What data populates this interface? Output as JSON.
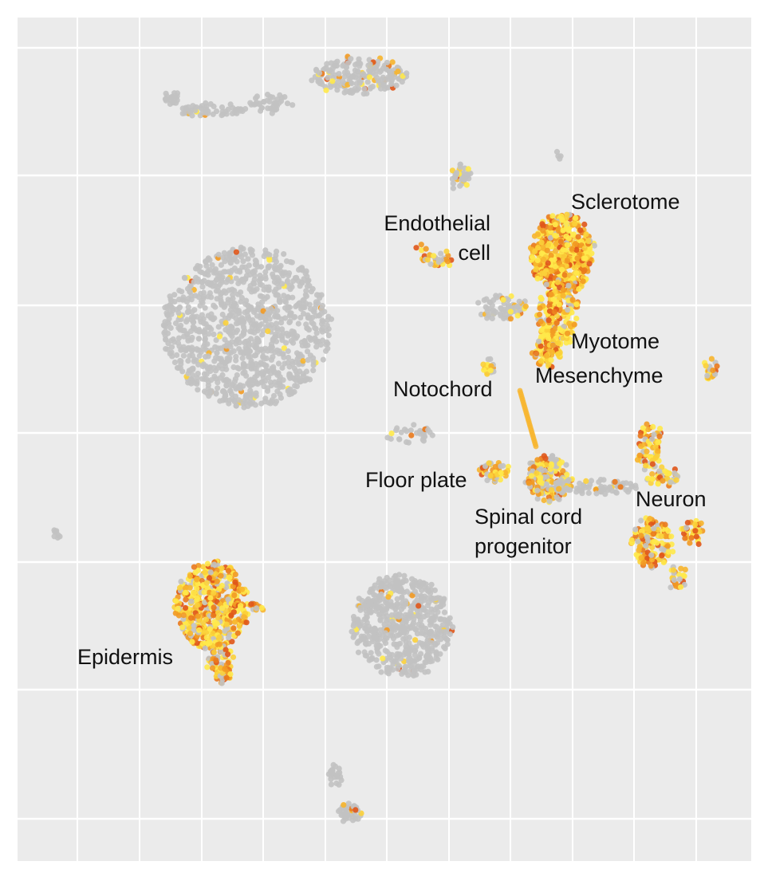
{
  "labels": [
    {
      "lines": [
        "Sclerotome"
      ]
    },
    {
      "lines": [
        "Endothelial",
        "cell"
      ]
    },
    {
      "lines": [
        "Myotome"
      ]
    },
    {
      "lines": [
        "Mesenchyme"
      ]
    },
    {
      "lines": [
        "Notochord"
      ]
    },
    {
      "lines": [
        "Floor plate"
      ]
    },
    {
      "lines": [
        "Spinal cord",
        "progenitor"
      ]
    },
    {
      "lines": [
        "Neuron"
      ]
    },
    {
      "lines": [
        "Epidermis"
      ]
    }
  ]
}
